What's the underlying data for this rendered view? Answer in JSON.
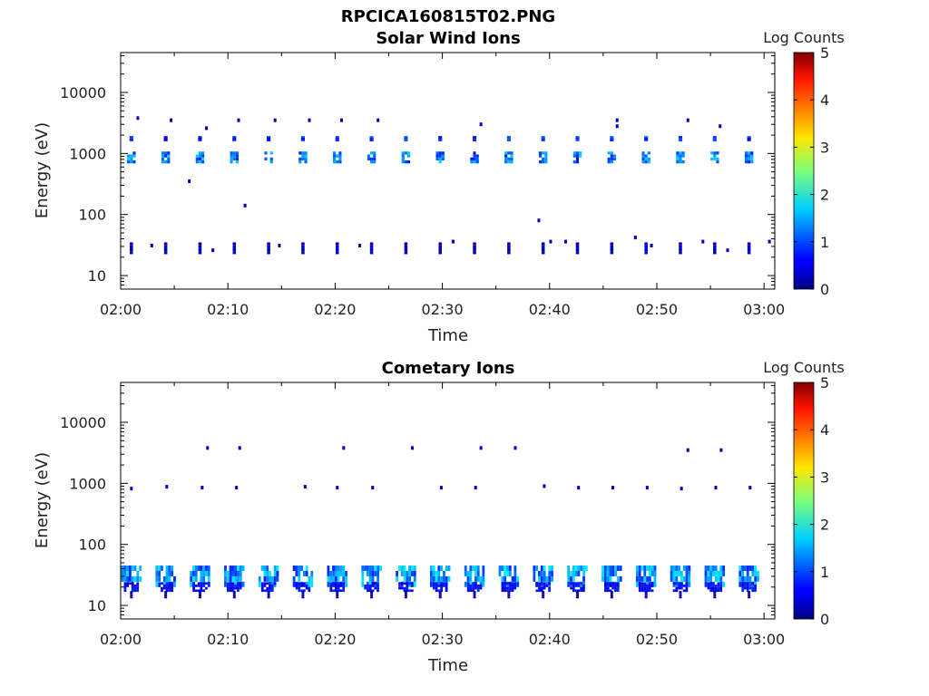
{
  "figure": {
    "title": "RPCICA160815T02.PNG"
  },
  "chart_data": [
    {
      "type": "heatmap",
      "title": "Solar Wind Ions",
      "xlabel": "Time",
      "ylabel": "Energy (eV)",
      "x_range": [
        "02:00",
        "03:01"
      ],
      "x_ticks": [
        "02:00",
        "02:10",
        "02:20",
        "02:30",
        "02:40",
        "02:50",
        "03:00"
      ],
      "y_scale": "log",
      "y_range": [
        6,
        45000
      ],
      "y_ticks": [
        "10",
        "100",
        "1000",
        "10000"
      ],
      "colorbar": {
        "label": "Log Counts",
        "range": [
          0,
          5
        ],
        "ticks": [
          "0",
          "1",
          "2",
          "3",
          "4",
          "5"
        ]
      },
      "grid": false,
      "pulse_period_min": 3.2,
      "pulse_start_min": 1.0,
      "pulse_count": 19,
      "bands": [
        {
          "energy_eV": 860,
          "log_counts": 1.2,
          "width_min": 0.8,
          "height_factor": 1.25
        },
        {
          "energy_eV": 1750,
          "log_counts": 0.8,
          "width_min": 0.35,
          "height_factor": 1.1
        },
        {
          "energy_eV": 28,
          "log_counts": 0.3,
          "width_min": 0.3,
          "height_factor": 1.25
        }
      ],
      "scatter_points": [
        {
          "t_min": 1.6,
          "energy_eV": 3800,
          "log_counts": 0.3
        },
        {
          "t_min": 4.7,
          "energy_eV": 3500,
          "log_counts": 0.3
        },
        {
          "t_min": 8.0,
          "energy_eV": 2600,
          "log_counts": 0.3
        },
        {
          "t_min": 11.0,
          "energy_eV": 3500,
          "log_counts": 0.3
        },
        {
          "t_min": 14.4,
          "energy_eV": 3500,
          "log_counts": 0.3
        },
        {
          "t_min": 17.6,
          "energy_eV": 3500,
          "log_counts": 0.3
        },
        {
          "t_min": 20.6,
          "energy_eV": 3500,
          "log_counts": 0.3
        },
        {
          "t_min": 24.0,
          "energy_eV": 3500,
          "log_counts": 0.3
        },
        {
          "t_min": 33.6,
          "energy_eV": 3000,
          "log_counts": 0.3
        },
        {
          "t_min": 46.3,
          "energy_eV": 3500,
          "log_counts": 0.3
        },
        {
          "t_min": 46.3,
          "energy_eV": 2800,
          "log_counts": 0.3
        },
        {
          "t_min": 52.9,
          "energy_eV": 3500,
          "log_counts": 0.3
        },
        {
          "t_min": 55.9,
          "energy_eV": 2800,
          "log_counts": 0.3
        },
        {
          "t_min": 6.4,
          "energy_eV": 350,
          "log_counts": 0.3
        },
        {
          "t_min": 11.6,
          "energy_eV": 140,
          "log_counts": 0.3
        },
        {
          "t_min": 39.0,
          "energy_eV": 80,
          "log_counts": 0.3
        },
        {
          "t_min": 31.0,
          "energy_eV": 36,
          "log_counts": 0.3
        },
        {
          "t_min": 40.1,
          "energy_eV": 36,
          "log_counts": 0.3
        },
        {
          "t_min": 41.5,
          "energy_eV": 36,
          "log_counts": 0.3
        },
        {
          "t_min": 48.0,
          "energy_eV": 42,
          "log_counts": 0.3
        },
        {
          "t_min": 54.3,
          "energy_eV": 36,
          "log_counts": 0.3
        },
        {
          "t_min": 60.5,
          "energy_eV": 36,
          "log_counts": 0.3
        },
        {
          "t_min": 2.9,
          "energy_eV": 31,
          "log_counts": 0.3
        },
        {
          "t_min": 8.6,
          "energy_eV": 26,
          "log_counts": 0.3
        },
        {
          "t_min": 14.8,
          "energy_eV": 31,
          "log_counts": 0.3
        },
        {
          "t_min": 22.3,
          "energy_eV": 31,
          "log_counts": 0.3
        },
        {
          "t_min": 49.5,
          "energy_eV": 31,
          "log_counts": 0.3
        },
        {
          "t_min": 56.6,
          "energy_eV": 26,
          "log_counts": 0.3
        }
      ]
    },
    {
      "type": "heatmap",
      "title": "Cometary Ions",
      "xlabel": "Time",
      "ylabel": "Energy (eV)",
      "x_range": [
        "02:00",
        "03:01"
      ],
      "x_ticks": [
        "02:00",
        "02:10",
        "02:20",
        "02:30",
        "02:40",
        "02:50",
        "03:00"
      ],
      "y_scale": "log",
      "y_range": [
        6,
        45000
      ],
      "y_ticks": [
        "10",
        "100",
        "1000",
        "10000"
      ],
      "colorbar": {
        "label": "Log Counts",
        "range": [
          0,
          5
        ],
        "ticks": [
          "0",
          "1",
          "2",
          "3",
          "4",
          "5"
        ]
      },
      "grid": false,
      "pulse_period_min": 3.2,
      "pulse_start_min": 1.0,
      "pulse_count": 19,
      "bands": [
        {
          "energy_eV": 30,
          "log_counts": 1.3,
          "width_min": 1.9,
          "height_factor": 1.5
        },
        {
          "energy_eV": 20,
          "log_counts": 0.6,
          "width_min": 1.4,
          "height_factor": 1.2
        },
        {
          "energy_eV": 15,
          "log_counts": 0.2,
          "width_min": 0.25,
          "height_factor": 1.15
        }
      ],
      "scatter_points": [
        {
          "t_min": 1.0,
          "energy_eV": 820,
          "log_counts": 0.4
        },
        {
          "t_min": 4.3,
          "energy_eV": 880,
          "log_counts": 0.4
        },
        {
          "t_min": 7.6,
          "energy_eV": 850,
          "log_counts": 0.3
        },
        {
          "t_min": 10.8,
          "energy_eV": 850,
          "log_counts": 0.3
        },
        {
          "t_min": 17.2,
          "energy_eV": 880,
          "log_counts": 0.3
        },
        {
          "t_min": 20.2,
          "energy_eV": 850,
          "log_counts": 0.3
        },
        {
          "t_min": 23.5,
          "energy_eV": 850,
          "log_counts": 0.3
        },
        {
          "t_min": 29.9,
          "energy_eV": 850,
          "log_counts": 0.3
        },
        {
          "t_min": 33.1,
          "energy_eV": 850,
          "log_counts": 0.3
        },
        {
          "t_min": 39.5,
          "energy_eV": 900,
          "log_counts": 0.3
        },
        {
          "t_min": 42.7,
          "energy_eV": 850,
          "log_counts": 0.3
        },
        {
          "t_min": 45.9,
          "energy_eV": 850,
          "log_counts": 0.3
        },
        {
          "t_min": 49.1,
          "energy_eV": 850,
          "log_counts": 0.3
        },
        {
          "t_min": 52.3,
          "energy_eV": 820,
          "log_counts": 0.4
        },
        {
          "t_min": 55.5,
          "energy_eV": 850,
          "log_counts": 0.3
        },
        {
          "t_min": 58.7,
          "energy_eV": 850,
          "log_counts": 0.3
        },
        {
          "t_min": 8.1,
          "energy_eV": 3800,
          "log_counts": 0.3
        },
        {
          "t_min": 11.1,
          "energy_eV": 3800,
          "log_counts": 0.3
        },
        {
          "t_min": 20.8,
          "energy_eV": 3800,
          "log_counts": 0.3
        },
        {
          "t_min": 27.2,
          "energy_eV": 3800,
          "log_counts": 0.3
        },
        {
          "t_min": 33.6,
          "energy_eV": 3800,
          "log_counts": 0.3
        },
        {
          "t_min": 36.8,
          "energy_eV": 3800,
          "log_counts": 0.3
        },
        {
          "t_min": 52.9,
          "energy_eV": 3500,
          "log_counts": 0.3
        },
        {
          "t_min": 56.0,
          "energy_eV": 3500,
          "log_counts": 0.3
        }
      ]
    }
  ]
}
